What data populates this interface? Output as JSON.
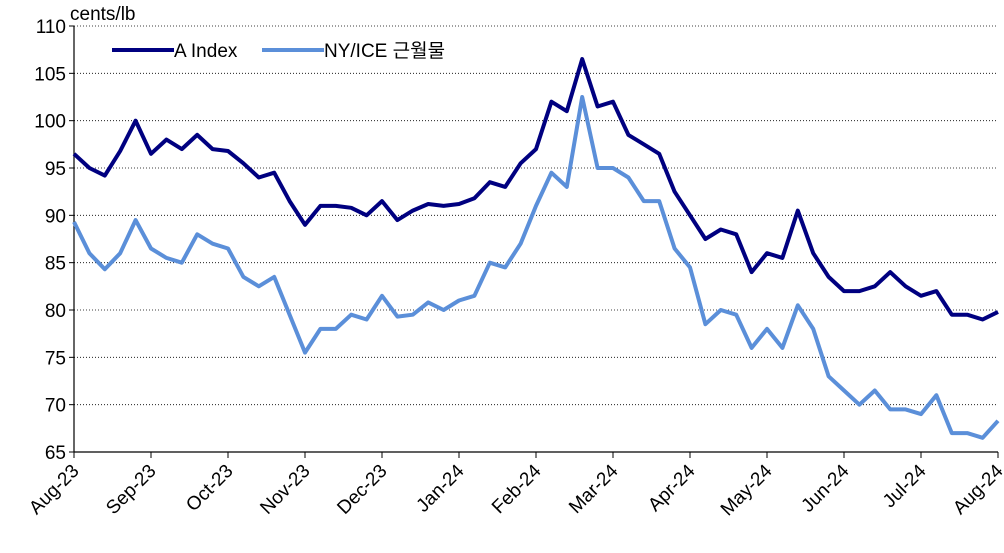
{
  "chart_data": {
    "type": "line",
    "y_label": "cents/lb",
    "categories": [
      "Aug-23",
      null,
      null,
      null,
      null,
      "Sep-23",
      null,
      null,
      null,
      null,
      "Oct-23",
      null,
      null,
      null,
      null,
      "Nov-23",
      null,
      null,
      null,
      null,
      "Dec-23",
      null,
      null,
      null,
      null,
      "Jan-24",
      null,
      null,
      null,
      null,
      "Feb-24",
      null,
      null,
      null,
      null,
      "Mar-24",
      null,
      null,
      null,
      null,
      "Apr-24",
      null,
      null,
      null,
      null,
      "May-24",
      null,
      null,
      null,
      null,
      "Jun-24",
      null,
      null,
      null,
      null,
      "Jul-24",
      null,
      null,
      null,
      null,
      "Aug-24"
    ],
    "series": [
      {
        "name": "A Index",
        "color": "#000080",
        "values": [
          96.5,
          95,
          94.2,
          96.8,
          100,
          96.5,
          98,
          97,
          98.5,
          97,
          96.8,
          95.5,
          94,
          94.5,
          91.5,
          89,
          91,
          91,
          90.8,
          90,
          91.5,
          89.5,
          90.5,
          91.2,
          91,
          91.2,
          91.8,
          93.5,
          93,
          95.5,
          97,
          102,
          101,
          106.5,
          101.5,
          102,
          98.5,
          97.5,
          96.5,
          92.5,
          90,
          87.5,
          88.5,
          88,
          84,
          86,
          85.5,
          90.5,
          86,
          83.5,
          82,
          82,
          82.5,
          84,
          82.5,
          81.5,
          82,
          79.5,
          79.5,
          79,
          79.8
        ]
      },
      {
        "name": "NY/ICE 근월물",
        "color": "#5b8fd9",
        "values": [
          89.3,
          86,
          84.3,
          86,
          89.5,
          86.5,
          85.5,
          85,
          88,
          87,
          86.5,
          83.5,
          82.5,
          83.5,
          79.5,
          75.5,
          78,
          78,
          79.5,
          79,
          81.5,
          79.3,
          79.5,
          80.8,
          80,
          81,
          81.5,
          85,
          84.5,
          87,
          91,
          94.5,
          93,
          102.5,
          95,
          95,
          94,
          91.5,
          91.5,
          86.5,
          84.5,
          78.5,
          80,
          79.5,
          76,
          78,
          76,
          80.5,
          78,
          73,
          71.5,
          70,
          71.5,
          69.5,
          69.5,
          69,
          71,
          67,
          67,
          66.5,
          68.3
        ]
      }
    ],
    "ylim": [
      65,
      110
    ],
    "yticks": [
      65,
      70,
      75,
      80,
      85,
      90,
      95,
      100,
      105,
      110
    ],
    "grid": true,
    "legend": "top-left"
  }
}
